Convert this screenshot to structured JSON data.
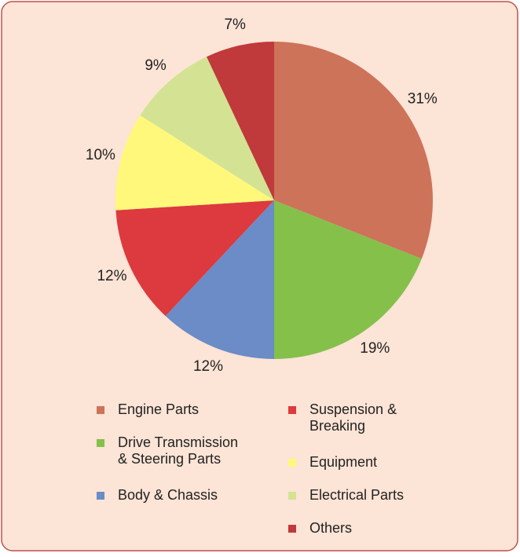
{
  "chart_data": {
    "type": "pie",
    "categories": [
      "Engine Parts",
      "Drive Transmission\n& Steering Parts",
      "Body & Chassis",
      "Suspension &\nBreaking",
      "Equipment",
      "Electrical Parts",
      "Others"
    ],
    "values": [
      31,
      19,
      12,
      12,
      10,
      9,
      7
    ],
    "value_labels": [
      "31%",
      "19%",
      "12%",
      "12%",
      "10%",
      "9%",
      "7%"
    ],
    "colors": [
      "#cd735a",
      "#85c04b",
      "#6b8cc6",
      "#dc3a3e",
      "#fff87a",
      "#d3e393",
      "#c0393b"
    ],
    "legend": "bottom"
  }
}
